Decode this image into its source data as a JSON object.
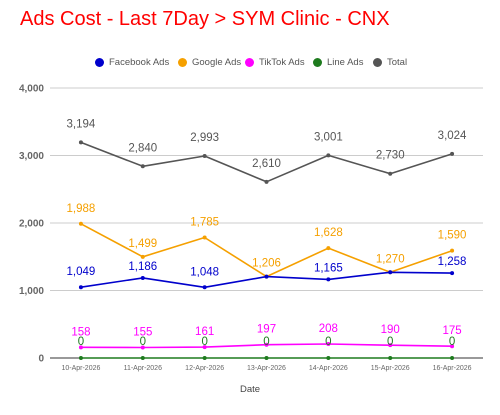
{
  "title": "Ads Cost - Last 7Day > SYM Clinic - CNX",
  "colors": {
    "title": "#ff0000",
    "grid": "#cccccc",
    "baseline": "#333333",
    "tick": "#666666"
  },
  "chart_data": {
    "type": "line",
    "title": "Ads Cost - Last 7Day > SYM Clinic - CNX",
    "xlabel": "Date",
    "ylabel": "",
    "categories": [
      "10-Apr-2026",
      "11-Apr-2026",
      "12-Apr-2026",
      "13-Apr-2026",
      "14-Apr-2026",
      "15-Apr-2026",
      "16-Apr-2026"
    ],
    "ylim": [
      0,
      4000
    ],
    "yticks": [
      "0",
      "1,000",
      "2,000",
      "3,000",
      "4,000"
    ],
    "ytick_values": [
      0,
      1000,
      2000,
      3000,
      4000
    ],
    "grid": true,
    "legend_position": "top",
    "series": [
      {
        "name": "Facebook Ads",
        "color": "#0000cc",
        "values": [
          1049,
          1186,
          1048,
          1206,
          1165,
          1270,
          1258
        ],
        "labels": [
          "1,049",
          "1,186",
          "1,048",
          "",
          "1,165",
          "",
          "1,258"
        ]
      },
      {
        "name": "Google Ads",
        "color": "#f5a000",
        "values": [
          1988,
          1499,
          1785,
          1206,
          1628,
          1270,
          1590
        ],
        "labels": [
          "1,988",
          "1,499",
          "1,785",
          "1,206",
          "1,628",
          "1,270",
          "1,590"
        ]
      },
      {
        "name": "TikTok Ads",
        "color": "#ff00ff",
        "values": [
          158,
          155,
          161,
          197,
          208,
          190,
          175
        ],
        "labels": [
          "158",
          "155",
          "161",
          "197",
          "208",
          "190",
          "175"
        ]
      },
      {
        "name": "Line Ads",
        "color": "#1e7b1e",
        "values": [
          0,
          0,
          0,
          0,
          0,
          0,
          0
        ],
        "labels": [
          "0",
          "0",
          "0",
          "0",
          "0",
          "0",
          "0"
        ]
      },
      {
        "name": "Total",
        "color": "#555555",
        "values": [
          3194,
          2840,
          2993,
          2610,
          3001,
          2730,
          3024
        ],
        "labels": [
          "3,194",
          "2,840",
          "2,993",
          "2,610",
          "3,001",
          "2,730",
          "3,024"
        ]
      }
    ]
  }
}
